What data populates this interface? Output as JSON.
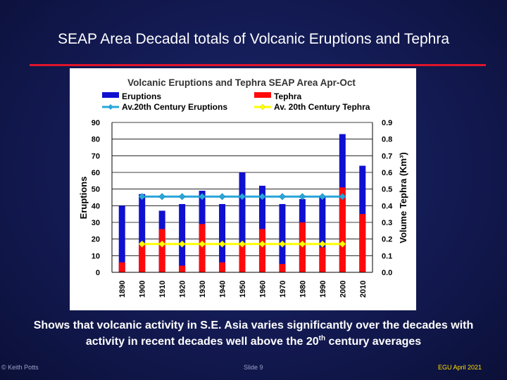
{
  "slide": {
    "title": "SEAP Area Decadal totals of Volcanic Eruptions and Tephra",
    "caption_line1": "Shows that volcanic activity in S.E. Asia varies significantly over the decades with",
    "caption_line2_pre": "activity in recent decades well above the 20",
    "caption_line2_sup": "th",
    "caption_line2_post": " century averages",
    "footer_left": "© Keith Potts",
    "footer_mid": "Slide 9",
    "footer_right": "EGU April 2021"
  },
  "colors": {
    "eruptions": "#1010d0",
    "tephra": "#ff0a0a",
    "avg_eruptions": "#29a6d9",
    "avg_tephra": "#ffff00",
    "rule": "#e0142a"
  },
  "chart_data": {
    "type": "bar",
    "title": "Volcanic Eruptions and Tephra SEAP Area Apr-Oct",
    "categories": [
      "1890",
      "1900",
      "1910",
      "1920",
      "1930",
      "1940",
      "1950",
      "1960",
      "1970",
      "1980",
      "1990",
      "2000",
      "2010"
    ],
    "series": [
      {
        "name": "Eruptions",
        "axis": "left",
        "values": [
          40,
          47,
          37,
          41,
          49,
          41,
          60,
          52,
          41,
          44,
          46,
          83,
          64
        ]
      },
      {
        "name": "Tephra",
        "axis": "right",
        "values": [
          0.06,
          0.17,
          0.26,
          0.04,
          0.29,
          0.06,
          0.17,
          0.26,
          0.05,
          0.3,
          0.15,
          0.51,
          0.35
        ]
      },
      {
        "name": "Av.20th Century Eruptions",
        "axis": "left",
        "type": "line",
        "value": 45.5,
        "start": "1900",
        "end": "2000"
      },
      {
        "name": "Av. 20th Century Tephra",
        "axis": "right",
        "type": "line",
        "value": 0.17,
        "start": "1900",
        "end": "2000"
      }
    ],
    "legend": [
      "Eruptions",
      "Tephra",
      "Av.20th Century Eruptions",
      "Av. 20th Century Tephra"
    ],
    "ylabel": "Eruptions",
    "y2label": "Volume Tephra (Km³)",
    "ylim": [
      0,
      90
    ],
    "y2lim": [
      0,
      0.9
    ],
    "yticks": [
      "0",
      "10",
      "20",
      "30",
      "40",
      "50",
      "60",
      "70",
      "80",
      "90"
    ],
    "y2ticks": [
      "0.0",
      "0.1",
      "0.2",
      "0.3",
      "0.4",
      "0.5",
      "0.6",
      "0.7",
      "0.8",
      "0.9"
    ],
    "grid": true
  }
}
